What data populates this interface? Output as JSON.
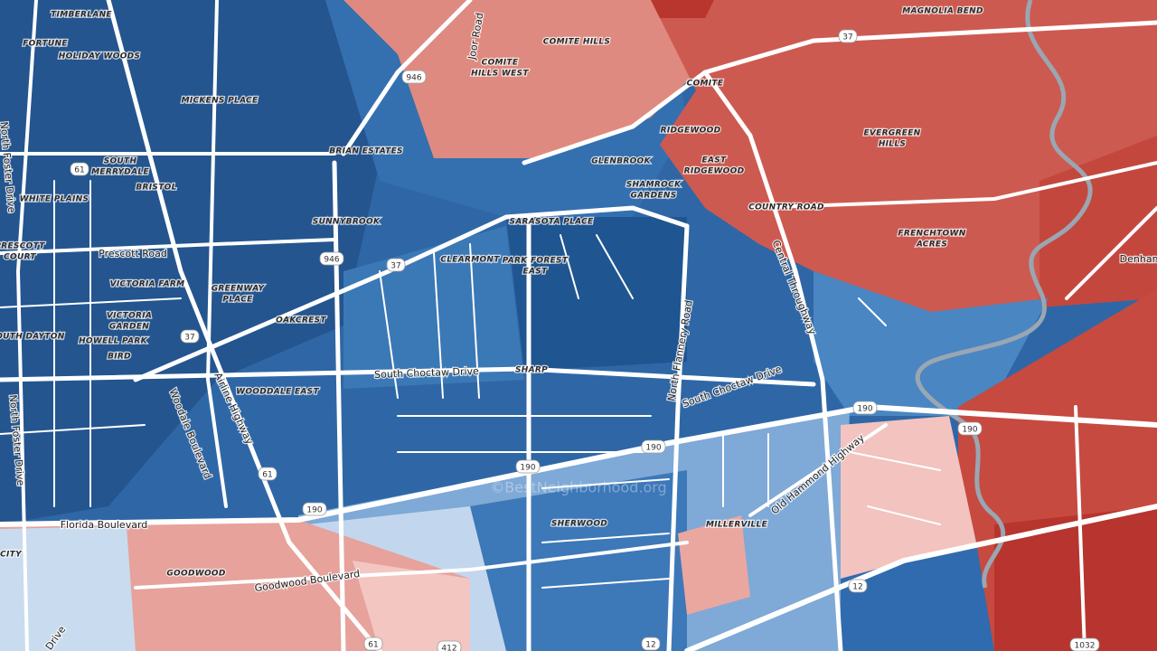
{
  "places": [
    [
      "TIMBERLANE"
    ],
    [
      "FORTUNE"
    ],
    [
      "HOLIDAY WOODS"
    ],
    [
      "MICKENS PLACE"
    ],
    [
      "BRIAN ESTATES"
    ],
    [
      "SOUTH",
      "MERRYDALE"
    ],
    [
      "BRISTOL"
    ],
    [
      "WHITE PLAINS"
    ],
    [
      "SUNNYBROOK"
    ],
    [
      "PRESCOTT",
      "COURT"
    ],
    [
      "VICTORIA FARM"
    ],
    [
      "GREENWAY",
      "PLACE"
    ],
    [
      "VICTORIA",
      "GARDEN"
    ],
    [
      "OAKCREST"
    ],
    [
      "SOUTH DAYTON"
    ],
    [
      "HOWELL PARK"
    ],
    [
      "BIRD"
    ],
    [
      "WOODDALE EAST"
    ],
    [
      "COMITE HILLS"
    ],
    [
      "COMITE",
      "HILLS WEST"
    ],
    [
      "COMITE"
    ],
    [
      "MAGNOLIA BEND"
    ],
    [
      "RIDGEWOOD"
    ],
    [
      "EAST",
      "RIDGEWOOD"
    ],
    [
      "EVERGREEN",
      "HILLS"
    ],
    [
      "GLENBROOK"
    ],
    [
      "SHAMROCK",
      "GARDENS"
    ],
    [
      "COUNTRY ROAD"
    ],
    [
      "SARASOTA PLACE"
    ],
    [
      "FRENCHTOWN",
      "ACRES"
    ],
    [
      "CLEARMONT"
    ],
    [
      "PARK FOREST",
      "EAST"
    ],
    [
      "SHARP"
    ],
    [
      "SHERWOOD"
    ],
    [
      "MILLERVILLE"
    ],
    [
      "GOODWOOD"
    ],
    [
      "CITY"
    ]
  ],
  "roads": [
    "Joor Road",
    "Prescott Road",
    "South Choctaw Drive",
    "North Flannery Road",
    "South Choctaw Drive",
    "Central Throughway",
    "Old Hammond Highway",
    "Florida Boulevard",
    "Goodwood Boulevard",
    "North Foster Drive",
    "North Foster Drive",
    "Woodale Boulevard",
    "Airline Highway",
    "Drive",
    "Denham"
  ],
  "shields": [
    "946",
    "946",
    "37",
    "37",
    "37",
    "61",
    "61",
    "61",
    "190",
    "190",
    "190",
    "190",
    "190",
    "12",
    "12",
    "1032",
    "412"
  ],
  "watermark": "©BestNeighborhood.org"
}
